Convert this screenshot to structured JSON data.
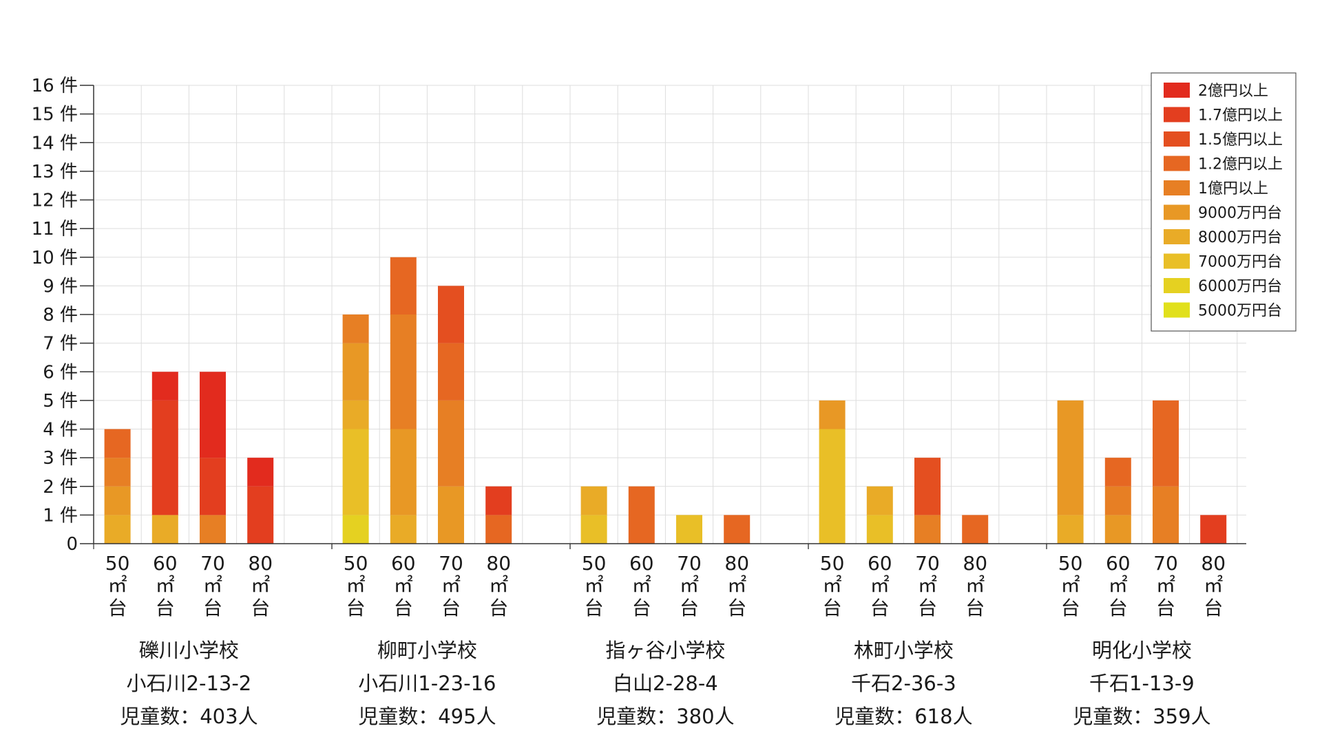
{
  "chart_data": {
    "type": "bar",
    "stacked": true,
    "ylim": [
      0,
      16
    ],
    "y_ticks": [
      "0",
      "1 件",
      "2 件",
      "3 件",
      "4 件",
      "5 件",
      "6 件",
      "7 件",
      "8 件",
      "9 件",
      "10 件",
      "11 件",
      "12 件",
      "13 件",
      "14 件",
      "15 件",
      "16 件"
    ],
    "grid": true,
    "legend_position": "top-right",
    "categories": [
      "50㎡台",
      "60㎡台",
      "70㎡台",
      "80㎡台"
    ],
    "category_lines": [
      {
        "num": "50",
        "unit": "㎡",
        "suffix": "台"
      },
      {
        "num": "60",
        "unit": "㎡",
        "suffix": "台"
      },
      {
        "num": "70",
        "unit": "㎡",
        "suffix": "台"
      },
      {
        "num": "80",
        "unit": "㎡",
        "suffix": "台"
      }
    ],
    "series": [
      {
        "name": "2億円以上",
        "color": "#e22b1e"
      },
      {
        "name": "1.7億円以上",
        "color": "#e33e1f"
      },
      {
        "name": "1.5億円以上",
        "color": "#e44f20"
      },
      {
        "name": "1.2億円以上",
        "color": "#e66722"
      },
      {
        "name": "1億円以上",
        "color": "#e77f24"
      },
      {
        "name": "9000万円台",
        "color": "#e89825"
      },
      {
        "name": "8000万円台",
        "color": "#e9ab27"
      },
      {
        "name": "7000万円台",
        "color": "#e9bf27"
      },
      {
        "name": "6000万円台",
        "color": "#e5d121"
      },
      {
        "name": "5000万円台",
        "color": "#e1e01c"
      }
    ],
    "groups": [
      {
        "school": "礫川小学校",
        "address": "小石川2-13-2",
        "children": "児童数：403人",
        "bars": [
          [
            0,
            0,
            0,
            1,
            1,
            1,
            1,
            0,
            0,
            0
          ],
          [
            1,
            4,
            0,
            0,
            0,
            0,
            1,
            0,
            0,
            0
          ],
          [
            3,
            2,
            0,
            0,
            1,
            0,
            0,
            0,
            0,
            0
          ],
          [
            1,
            2,
            0,
            0,
            0,
            0,
            0,
            0,
            0,
            0
          ]
        ]
      },
      {
        "school": "柳町小学校",
        "address": "小石川1-23-16",
        "children": "児童数：495人",
        "bars": [
          [
            0,
            0,
            0,
            0,
            1,
            2,
            1,
            3,
            1,
            0
          ],
          [
            0,
            0,
            0,
            2,
            4,
            3,
            1,
            0,
            0,
            0
          ],
          [
            0,
            0,
            2,
            2,
            3,
            2,
            0,
            0,
            0,
            0
          ],
          [
            0,
            1,
            0,
            1,
            0,
            0,
            0,
            0,
            0,
            0
          ]
        ]
      },
      {
        "school": "指ヶ谷小学校",
        "address": "白山2-28-4",
        "children": "児童数：380人",
        "bars": [
          [
            0,
            0,
            0,
            0,
            0,
            0,
            1,
            1,
            0,
            0
          ],
          [
            0,
            0,
            0,
            2,
            0,
            0,
            0,
            0,
            0,
            0
          ],
          [
            0,
            0,
            0,
            0,
            0,
            0,
            0,
            1,
            0,
            0
          ],
          [
            0,
            0,
            0,
            1,
            0,
            0,
            0,
            0,
            0,
            0
          ]
        ]
      },
      {
        "school": "林町小学校",
        "address": "千石2-36-3",
        "children": "児童数：618人",
        "bars": [
          [
            0,
            0,
            0,
            0,
            0,
            1,
            0,
            4,
            0,
            0
          ],
          [
            0,
            0,
            0,
            0,
            0,
            0,
            1,
            1,
            0,
            0
          ],
          [
            0,
            0,
            2,
            0,
            1,
            0,
            0,
            0,
            0,
            0
          ],
          [
            0,
            0,
            0,
            1,
            0,
            0,
            0,
            0,
            0,
            0
          ]
        ]
      },
      {
        "school": "明化小学校",
        "address": "千石1-13-9",
        "children": "児童数：359人",
        "bars": [
          [
            0,
            0,
            0,
            0,
            0,
            4,
            1,
            0,
            0,
            0
          ],
          [
            0,
            0,
            0,
            1,
            1,
            1,
            0,
            0,
            0,
            0
          ],
          [
            0,
            0,
            0,
            3,
            2,
            0,
            0,
            0,
            0,
            0
          ],
          [
            0,
            1,
            0,
            0,
            0,
            0,
            0,
            0,
            0,
            0
          ]
        ]
      }
    ]
  }
}
